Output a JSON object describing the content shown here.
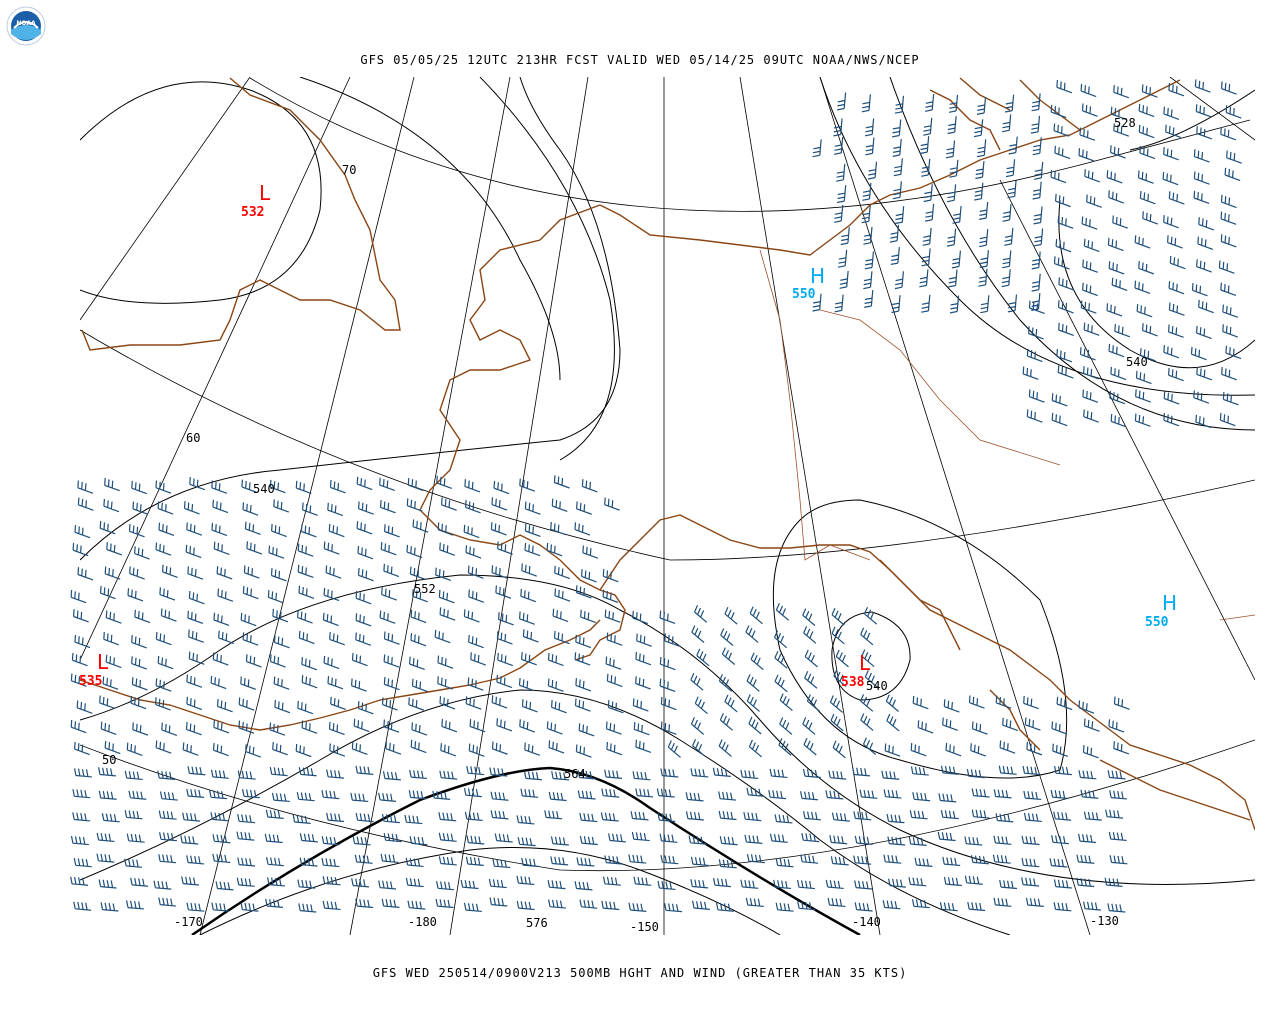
{
  "header": {
    "top_title": "GFS 05/05/25 12UTC 213HR FCST VALID WED 05/14/25 09UTC NOAA/NWS/NCEP",
    "bottom_title": "GFS WED 250514/0900V213 500MB HGHT AND WIND (GREATER THAN 35 KTS)"
  },
  "logo": {
    "text": "NOAA",
    "icon": "noaa-logo-icon"
  },
  "colors": {
    "coastline": "#8B4513",
    "border": "#A0522D",
    "wind_barb": "#1f4f7a",
    "low_center": "#ff0000",
    "high_center": "#00aaee",
    "contour": "#000000"
  },
  "lat_labels": [
    "70",
    "60",
    "50"
  ],
  "lon_labels": [
    "-170",
    "-180",
    "-150",
    "-140",
    "-130"
  ],
  "contour_labels": [
    "528",
    "540",
    "540",
    "552",
    "564",
    "576",
    "540",
    "540"
  ],
  "pressure_centers": [
    {
      "type": "L",
      "value": "532"
    },
    {
      "type": "H",
      "value": "550"
    },
    {
      "type": "L",
      "value": "535"
    },
    {
      "type": "L",
      "value": "538"
    },
    {
      "type": "H",
      "value": "550"
    }
  ]
}
